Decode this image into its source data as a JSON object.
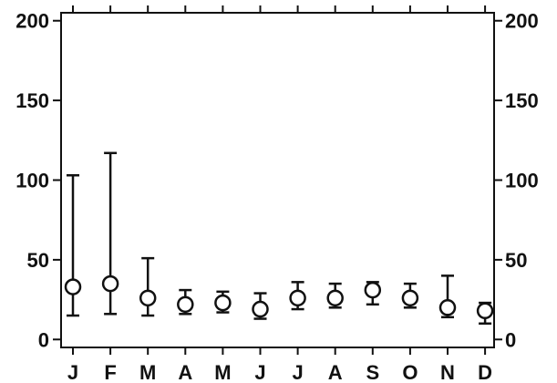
{
  "chart_data": {
    "type": "scatter",
    "title": "",
    "xlabel": "",
    "ylabel": "",
    "categories": [
      "J",
      "F",
      "M",
      "A",
      "M",
      "J",
      "J",
      "A",
      "S",
      "O",
      "N",
      "D"
    ],
    "series": [
      {
        "values": [
          33,
          35,
          26,
          22,
          23,
          19,
          26,
          26,
          31,
          26,
          20,
          18
        ],
        "error_low": [
          15,
          16,
          15,
          16,
          17,
          13,
          19,
          20,
          22,
          20,
          14,
          10
        ],
        "error_high": [
          103,
          117,
          51,
          31,
          30,
          29,
          36,
          35,
          36,
          35,
          40,
          23
        ]
      }
    ],
    "ylim": [
      -5,
      205
    ],
    "yticks": [
      "0",
      "50",
      "100",
      "150",
      "200"
    ],
    "ytick_values": [
      0,
      50,
      100,
      150,
      200
    ],
    "grid": false,
    "colors": {
      "ink": "#111111",
      "background": "#ffffff"
    }
  }
}
